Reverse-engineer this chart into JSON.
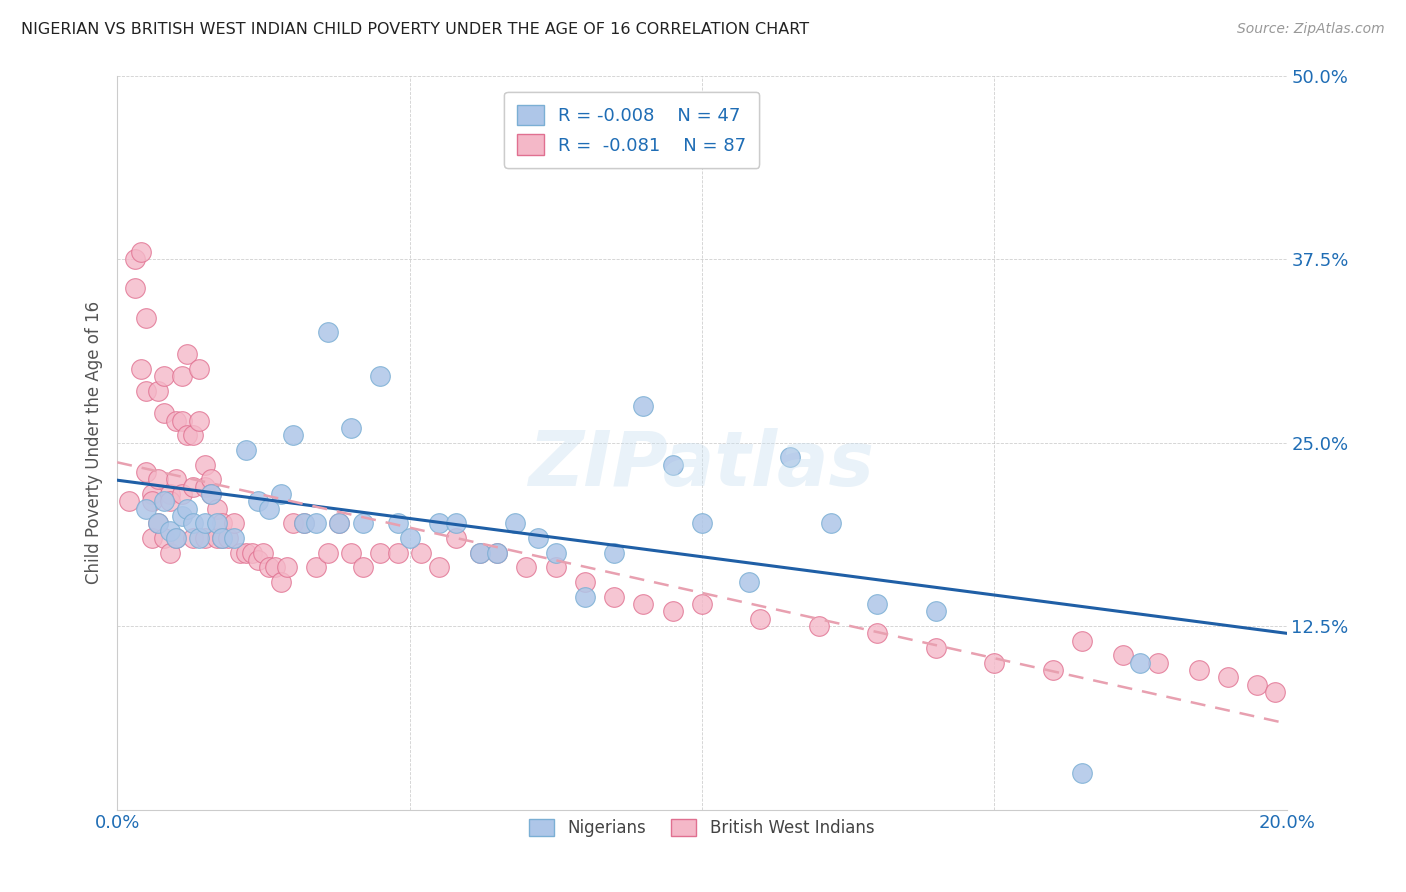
{
  "title": "NIGERIAN VS BRITISH WEST INDIAN CHILD POVERTY UNDER THE AGE OF 16 CORRELATION CHART",
  "source": "Source: ZipAtlas.com",
  "ylabel": "Child Poverty Under the Age of 16",
  "xlim": [
    0.0,
    0.2
  ],
  "ylim": [
    0.0,
    0.5
  ],
  "xticks": [
    0.0,
    0.05,
    0.1,
    0.15,
    0.2
  ],
  "yticks": [
    0.0,
    0.125,
    0.25,
    0.375,
    0.5
  ],
  "yticklabels": [
    "",
    "12.5%",
    "25.0%",
    "37.5%",
    "50.0%"
  ],
  "nigerian_color": "#aec6e8",
  "nigerian_edge": "#7bafd4",
  "bwi_color": "#f4b8c8",
  "bwi_edge": "#e07090",
  "trend_nigerian_color": "#1f5fa6",
  "trend_bwi_color": "#e8a0b0",
  "watermark": "ZIPatlas",
  "nigerian_R": -0.008,
  "nigerian_N": 47,
  "bwi_R": -0.081,
  "bwi_N": 87,
  "nigerian_x": [
    0.005,
    0.007,
    0.008,
    0.009,
    0.01,
    0.011,
    0.012,
    0.013,
    0.014,
    0.015,
    0.016,
    0.017,
    0.018,
    0.02,
    0.022,
    0.024,
    0.026,
    0.028,
    0.03,
    0.032,
    0.034,
    0.036,
    0.038,
    0.04,
    0.042,
    0.045,
    0.048,
    0.05,
    0.055,
    0.058,
    0.062,
    0.065,
    0.068,
    0.072,
    0.075,
    0.08,
    0.085,
    0.09,
    0.095,
    0.1,
    0.108,
    0.115,
    0.122,
    0.13,
    0.14,
    0.165,
    0.175
  ],
  "nigerian_y": [
    0.205,
    0.195,
    0.21,
    0.19,
    0.185,
    0.2,
    0.205,
    0.195,
    0.185,
    0.195,
    0.215,
    0.195,
    0.185,
    0.185,
    0.245,
    0.21,
    0.205,
    0.215,
    0.255,
    0.195,
    0.195,
    0.325,
    0.195,
    0.26,
    0.195,
    0.295,
    0.195,
    0.185,
    0.195,
    0.195,
    0.175,
    0.175,
    0.195,
    0.185,
    0.175,
    0.145,
    0.175,
    0.275,
    0.235,
    0.195,
    0.155,
    0.24,
    0.195,
    0.14,
    0.135,
    0.025,
    0.1
  ],
  "bwi_x": [
    0.002,
    0.003,
    0.003,
    0.004,
    0.004,
    0.005,
    0.005,
    0.005,
    0.006,
    0.006,
    0.006,
    0.007,
    0.007,
    0.007,
    0.008,
    0.008,
    0.008,
    0.009,
    0.009,
    0.009,
    0.01,
    0.01,
    0.01,
    0.011,
    0.011,
    0.011,
    0.012,
    0.012,
    0.013,
    0.013,
    0.013,
    0.014,
    0.014,
    0.015,
    0.015,
    0.015,
    0.016,
    0.016,
    0.017,
    0.017,
    0.018,
    0.018,
    0.019,
    0.02,
    0.021,
    0.022,
    0.023,
    0.024,
    0.025,
    0.026,
    0.027,
    0.028,
    0.029,
    0.03,
    0.032,
    0.034,
    0.036,
    0.038,
    0.04,
    0.042,
    0.045,
    0.048,
    0.052,
    0.055,
    0.058,
    0.062,
    0.065,
    0.07,
    0.075,
    0.08,
    0.085,
    0.09,
    0.095,
    0.1,
    0.11,
    0.12,
    0.13,
    0.14,
    0.15,
    0.16,
    0.165,
    0.172,
    0.178,
    0.185,
    0.19,
    0.195,
    0.198
  ],
  "bwi_y": [
    0.21,
    0.375,
    0.355,
    0.38,
    0.3,
    0.335,
    0.285,
    0.23,
    0.215,
    0.185,
    0.21,
    0.285,
    0.225,
    0.195,
    0.295,
    0.27,
    0.185,
    0.215,
    0.175,
    0.21,
    0.265,
    0.225,
    0.185,
    0.295,
    0.265,
    0.215,
    0.31,
    0.255,
    0.255,
    0.22,
    0.185,
    0.3,
    0.265,
    0.235,
    0.22,
    0.185,
    0.225,
    0.215,
    0.205,
    0.185,
    0.195,
    0.185,
    0.185,
    0.195,
    0.175,
    0.175,
    0.175,
    0.17,
    0.175,
    0.165,
    0.165,
    0.155,
    0.165,
    0.195,
    0.195,
    0.165,
    0.175,
    0.195,
    0.175,
    0.165,
    0.175,
    0.175,
    0.175,
    0.165,
    0.185,
    0.175,
    0.175,
    0.165,
    0.165,
    0.155,
    0.145,
    0.14,
    0.135,
    0.14,
    0.13,
    0.125,
    0.12,
    0.11,
    0.1,
    0.095,
    0.115,
    0.105,
    0.1,
    0.095,
    0.09,
    0.085,
    0.08
  ]
}
